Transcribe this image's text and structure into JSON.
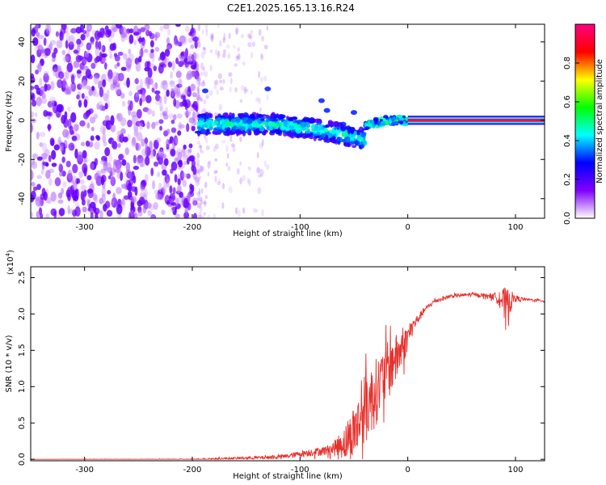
{
  "title": "C2E1.2025.165.13.16.R24",
  "chart_data": [
    {
      "type": "heatmap",
      "name": "spectrogram",
      "xlabel": "Height of straight line (km)",
      "ylabel": "Frequency (Hz)",
      "xlim": [
        -350,
        127
      ],
      "ylim": [
        -50,
        49
      ],
      "xticks": [
        -300,
        -200,
        -100,
        0,
        100
      ],
      "xtick_labels": [
        "-300",
        "-200",
        "-100",
        "0",
        "100"
      ],
      "yticks": [
        -40,
        -20,
        0,
        20,
        40
      ],
      "ytick_labels": [
        "-40",
        "-20",
        "0",
        "20",
        "40"
      ],
      "regions": [
        {
          "name": "noise",
          "x_range": [
            -350,
            -195
          ],
          "y_range": [
            -50,
            49
          ],
          "amplitude": 0.05
        },
        {
          "name": "transition-fade",
          "x_range": [
            -195,
            -130
          ],
          "y_range": [
            -50,
            49
          ],
          "amplitude": 0.02
        },
        {
          "name": "signal-band",
          "x_range": [
            -195,
            -40
          ],
          "center_hz": [
            -2,
            -2,
            -6,
            -10
          ],
          "center_x": [
            -195,
            -120,
            -70,
            -40
          ],
          "width_hz": 6,
          "amplitude": 0.35
        },
        {
          "name": "converging",
          "x_range": [
            -40,
            0
          ],
          "center_x": [
            -40,
            -20,
            0
          ],
          "center_hz": [
            -3,
            0,
            0
          ],
          "width_hz": 4,
          "amplitude": 0.5
        },
        {
          "name": "carrier",
          "x_range": [
            0,
            127
          ],
          "center_hz": 0,
          "width_hz": 3,
          "amplitude": 0.95
        }
      ],
      "colorbar": {
        "label": "Normalized spectral amplitude",
        "range": [
          0,
          1
        ],
        "ticks": [
          0.0,
          0.2,
          0.4,
          0.6,
          0.8
        ],
        "tick_labels": [
          "0.0",
          "0.2",
          "0.4",
          "0.6",
          "0.8"
        ],
        "stops": [
          "#ffffff",
          "#8000ff",
          "#0000ff",
          "#00ffff",
          "#00ff00",
          "#ffff00",
          "#ff0000",
          "#ff0080"
        ]
      }
    },
    {
      "type": "line",
      "name": "snr",
      "xlabel": "Height of straight line (km)",
      "ylabel": "SNR (10 * v/v)",
      "y_multiplier": "(x10",
      "y_multiplier_exp": "4",
      "y_multiplier_close": ")",
      "xlim": [
        -350,
        127
      ],
      "ylim": [
        -0.02,
        2.65
      ],
      "xticks": [
        -300,
        -200,
        -100,
        0,
        100
      ],
      "xtick_labels": [
        "-300",
        "-200",
        "-100",
        "0",
        "100"
      ],
      "yticks": [
        0.0,
        0.5,
        1.0,
        1.5,
        2.0,
        2.5
      ],
      "ytick_labels": [
        "0.0",
        "0.5",
        "1.0",
        "1.5",
        "2.0",
        "2.5"
      ],
      "color": "#e8302c",
      "x": [
        -350,
        -300,
        -250,
        -200,
        -175,
        -150,
        -125,
        -110,
        -100,
        -90,
        -80,
        -70,
        -60,
        -55,
        -50,
        -45,
        -40,
        -35,
        -30,
        -25,
        -20,
        -15,
        -10,
        -5,
        0,
        5,
        10,
        15,
        20,
        25,
        30,
        40,
        50,
        60,
        70,
        80,
        85,
        90,
        95,
        100,
        110,
        120,
        127
      ],
      "values": [
        0.0,
        0.0,
        0.0,
        0.0,
        0.01,
        0.02,
        0.03,
        0.05,
        0.08,
        0.1,
        0.12,
        0.15,
        0.25,
        0.3,
        0.45,
        0.55,
        0.75,
        0.85,
        1.0,
        1.1,
        1.25,
        1.35,
        1.45,
        1.55,
        1.7,
        1.85,
        1.95,
        2.05,
        2.12,
        2.18,
        2.2,
        2.25,
        2.26,
        2.27,
        2.26,
        2.25,
        2.25,
        2.15,
        2.2,
        2.22,
        2.2,
        2.19,
        2.18
      ],
      "noise_amplitude": [
        0.0,
        0.005,
        0.005,
        0.01,
        0.015,
        0.02,
        0.03,
        0.04,
        0.05,
        0.06,
        0.07,
        0.1,
        0.25,
        0.35,
        0.45,
        0.5,
        0.6,
        0.55,
        0.55,
        0.5,
        0.5,
        0.45,
        0.4,
        0.3,
        0.2,
        0.12,
        0.08,
        0.05,
        0.04,
        0.04,
        0.03,
        0.03,
        0.03,
        0.03,
        0.03,
        0.05,
        0.15,
        0.3,
        0.2,
        0.05,
        0.02,
        0.02,
        0.02
      ]
    }
  ]
}
